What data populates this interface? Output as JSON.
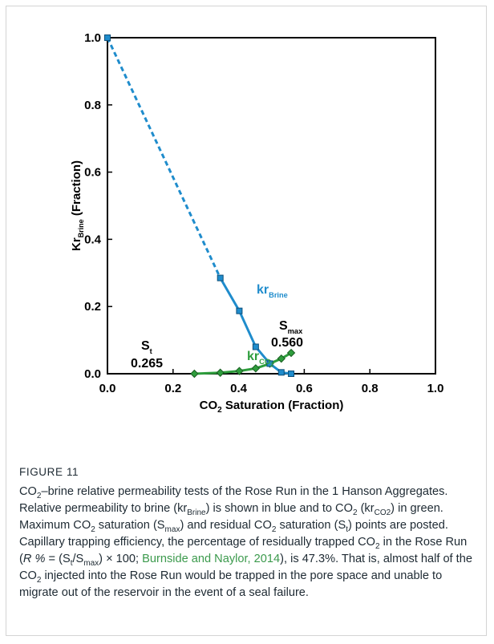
{
  "figure": {
    "label": "FIGURE 11",
    "caption": {
      "co2": "CO",
      "co2_sub": "2",
      "part1": "–brine relative permeability tests of the Rose Run in the 1 Hanson Aggregates. Relative permeability to brine (kr",
      "brine_sub": "Brine",
      "part2": ") is shown in blue and to CO",
      "part3": " (kr",
      "krco2_sub": "CO2",
      "part4": ") in green. Maximum CO",
      "part5": " saturation (S",
      "smax_sub": "max",
      "part6": ") and residual CO",
      "part7": " saturation (S",
      "st_sub": "t",
      "part8": ") points are posted. Capillary trapping efficiency, the percentage of residually trapped CO",
      "part9": " in the Rose Run (",
      "formula_r": "R %",
      "part10": " = (S",
      "part11": "/S",
      "part12": ") × 100; ",
      "citation": "Burnside and Naylor, 2014",
      "part13": "), is 47.3%. That is, almost half of the CO",
      "part14": " injected into the Rose Run would be trapped in the pore space and unable to migrate out of the reservoir in the event of a seal failure."
    }
  },
  "chart_data": {
    "type": "line",
    "xlabel": "CO₂ Saturation (Fraction)",
    "ylabel": "Kr_Brine (Fraction)",
    "xlim": [
      0,
      1
    ],
    "ylim": [
      0,
      1
    ],
    "xticks": [
      "0.0",
      "0.2",
      "0.4",
      "0.6",
      "0.8",
      "1.0"
    ],
    "yticks": [
      "0.0",
      "0.2",
      "0.4",
      "0.6",
      "0.8",
      "1.0"
    ],
    "grid": false,
    "series": [
      {
        "name": "kr_Brine",
        "label_main": "kr",
        "label_sub": "Brine",
        "color": "#1f8ccc",
        "marker": "square",
        "dashed_segment": {
          "x": [
            0.0,
            0.344
          ],
          "y": [
            1.0,
            0.285
          ]
        },
        "x": [
          0.344,
          0.402,
          0.452,
          0.495,
          0.53,
          0.56
        ],
        "y": [
          0.285,
          0.187,
          0.08,
          0.03,
          0.004,
          0.0
        ]
      },
      {
        "name": "kr_CO2",
        "label_main": "kr",
        "label_sub": "CO",
        "label_subsub": "2",
        "color": "#2e9d3c",
        "marker": "diamond",
        "x": [
          0.265,
          0.344,
          0.402,
          0.452,
          0.495,
          0.53,
          0.56
        ],
        "y": [
          0.0,
          0.003,
          0.008,
          0.016,
          0.03,
          0.045,
          0.062
        ]
      }
    ],
    "annotations": {
      "st": {
        "label": "S",
        "sub": "t",
        "value": "0.265"
      },
      "smax": {
        "label": "S",
        "sub": "max",
        "value": "0.560"
      }
    }
  }
}
